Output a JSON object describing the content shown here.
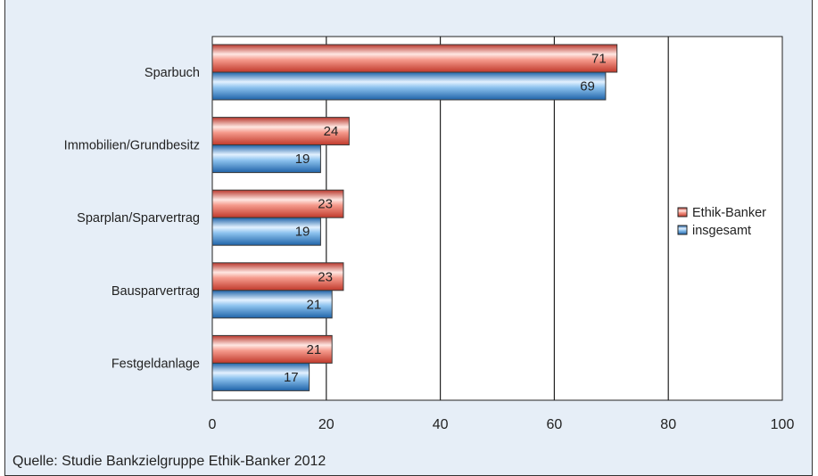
{
  "source": "Quelle: Studie Bankzielgruppe Ethik-Banker 2012",
  "chart_data": {
    "type": "bar",
    "orientation": "horizontal",
    "categories": [
      "Sparbuch",
      "Immobilien/Grundbesitz",
      "Sparplan/Sparvertrag",
      "Bausparvertrag",
      "Festgeldanlage"
    ],
    "series": [
      {
        "name": "Ethik-Banker",
        "values": [
          71,
          24,
          23,
          23,
          21
        ],
        "color": "#e05a4e"
      },
      {
        "name": "insgesamt",
        "values": [
          69,
          19,
          19,
          21,
          17
        ],
        "color": "#3f8ed6"
      }
    ],
    "xlim": [
      0,
      100
    ],
    "xticks": [
      0,
      20,
      40,
      60,
      80,
      100
    ],
    "grid": true,
    "legend_position": "right",
    "title": "",
    "xlabel": "",
    "ylabel": ""
  }
}
